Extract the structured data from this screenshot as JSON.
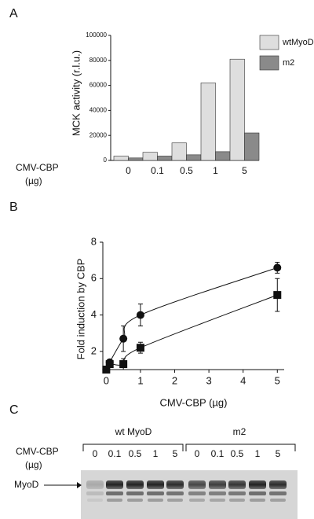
{
  "panels": [
    "A",
    "B",
    "C"
  ],
  "chart_data": [
    {
      "type": "bar",
      "y_label": "MCK activity (r.l.u.)",
      "x_label": [
        "CMV-CBP",
        "(µg)"
      ],
      "categories": [
        "0",
        "0.1",
        "0.5",
        "1",
        "5"
      ],
      "series": [
        {
          "name": "wtMyoD",
          "color": "#dedede",
          "values": [
            3500,
            6500,
            14000,
            62000,
            81000
          ]
        },
        {
          "name": "m2",
          "color": "#8a8a8a",
          "values": [
            2000,
            3500,
            4500,
            7000,
            22000
          ]
        }
      ],
      "ylim": [
        0,
        100000
      ],
      "yticks": [
        0,
        20000,
        40000,
        60000,
        80000,
        100000
      ],
      "legend": "upper right"
    },
    {
      "type": "line",
      "y_label": "Fold induction by CBP",
      "x_label": "CMV-CBP (µg)",
      "series": [
        {
          "marker": "circle",
          "color": "#111111",
          "x": [
            0,
            0.1,
            0.5,
            1,
            5
          ],
          "values": [
            1.0,
            1.4,
            2.7,
            4.0,
            6.6
          ],
          "errors": [
            0.1,
            0.1,
            0.7,
            0.6,
            0.3
          ]
        },
        {
          "marker": "square",
          "color": "#111111",
          "x": [
            0,
            0.1,
            0.5,
            1,
            5
          ],
          "values": [
            1.0,
            1.3,
            1.3,
            2.2,
            5.1
          ],
          "errors": [
            0.1,
            0.1,
            0.3,
            0.3,
            0.9
          ]
        }
      ],
      "xlim": [
        -0.1,
        5.2
      ],
      "xticks": [
        0,
        1,
        2,
        3,
        4,
        5
      ],
      "ylim": [
        1,
        8
      ],
      "yticks": [
        2,
        4,
        6,
        8
      ]
    }
  ],
  "blot": {
    "row_label": [
      "CMV-CBP",
      "(µg)"
    ],
    "band_label": "MyoD",
    "groups": [
      {
        "label": "wt MyoD",
        "lanes": [
          "0",
          "0.1",
          "0.5",
          "1",
          "5"
        ]
      },
      {
        "label": "m2",
        "lanes": [
          "0",
          "0.1",
          "0.5",
          "1",
          "5"
        ]
      }
    ]
  }
}
